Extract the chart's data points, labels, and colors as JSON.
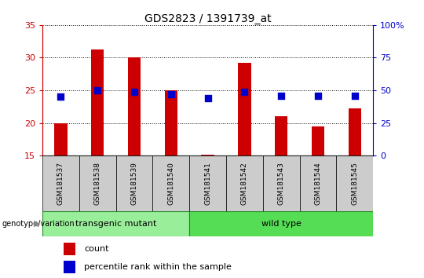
{
  "title": "GDS2823 / 1391739_at",
  "samples": [
    "GSM181537",
    "GSM181538",
    "GSM181539",
    "GSM181540",
    "GSM181541",
    "GSM181542",
    "GSM181543",
    "GSM181544",
    "GSM181545"
  ],
  "counts": [
    19.9,
    31.2,
    30.0,
    25.0,
    15.2,
    29.2,
    21.0,
    19.5,
    22.3
  ],
  "percentiles": [
    45,
    50,
    49,
    47,
    44,
    49,
    46,
    46,
    46
  ],
  "ylim_left": [
    15,
    35
  ],
  "yticks_left": [
    15,
    20,
    25,
    30,
    35
  ],
  "ylim_right": [
    0,
    100
  ],
  "yticks_right": [
    0,
    25,
    50,
    75,
    100
  ],
  "ytick_labels_right": [
    "0",
    "25",
    "50",
    "75",
    "100%"
  ],
  "bar_color": "#cc0000",
  "dot_color": "#0000cc",
  "transgenic_color": "#99ee99",
  "wildtype_color": "#55dd55",
  "transgenic_label": "transgenic mutant",
  "wildtype_label": "wild type",
  "n_transgenic": 4,
  "legend_count": "count",
  "legend_percentile": "percentile rank within the sample",
  "genotype_label": "genotype/variation",
  "tick_color_left": "#cc0000",
  "tick_color_right": "#0000cc",
  "bar_width": 0.35,
  "dot_size": 35,
  "label_box_color": "#cccccc",
  "spine_color": "#000000"
}
